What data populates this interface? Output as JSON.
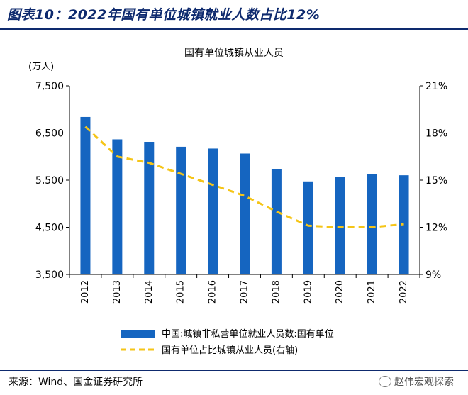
{
  "figure_title": "图表10：2022年国有单位城镇就业人数占比12%",
  "source": "来源：Wind、国金证券研究所",
  "watermark": "赵伟宏观探索",
  "colors": {
    "bar": "#1565c0",
    "line": "#f5c518",
    "rule": "#0e2a6e",
    "axis": "#000000"
  },
  "chart_data": {
    "type": "bar",
    "title": "国有单位城镇从业人员",
    "y_unit": "(万人)",
    "categories": [
      "2012",
      "2013",
      "2014",
      "2015",
      "2016",
      "2017",
      "2018",
      "2019",
      "2020",
      "2021",
      "2022"
    ],
    "series": [
      {
        "name": "中国:城镇非私营单位就业人员数:国有单位",
        "type": "bar",
        "axis": "left",
        "values": [
          6839,
          6365,
          6312,
          6208,
          6170,
          6064,
          5740,
          5473,
          5563,
          5633,
          5603
        ]
      },
      {
        "name": "国有单位占比城镇从业人员(右轴)",
        "type": "line",
        "axis": "right",
        "style": "dashed",
        "values": [
          18.4,
          16.5,
          16.1,
          15.4,
          14.7,
          14.0,
          13.0,
          12.1,
          12.0,
          12.0,
          12.2
        ]
      }
    ],
    "y_left": {
      "min": 3500,
      "max": 7500,
      "ticks": [
        3500,
        4500,
        5500,
        6500,
        7500
      ],
      "tick_labels": [
        "3,500",
        "4,500",
        "5,500",
        "6,500",
        "7,500"
      ]
    },
    "y_right": {
      "min": 9,
      "max": 21,
      "ticks": [
        9,
        12,
        15,
        18,
        21
      ],
      "tick_labels": [
        "9%",
        "12%",
        "15%",
        "18%",
        "21%"
      ]
    },
    "grid": false,
    "legend_position": "bottom"
  }
}
